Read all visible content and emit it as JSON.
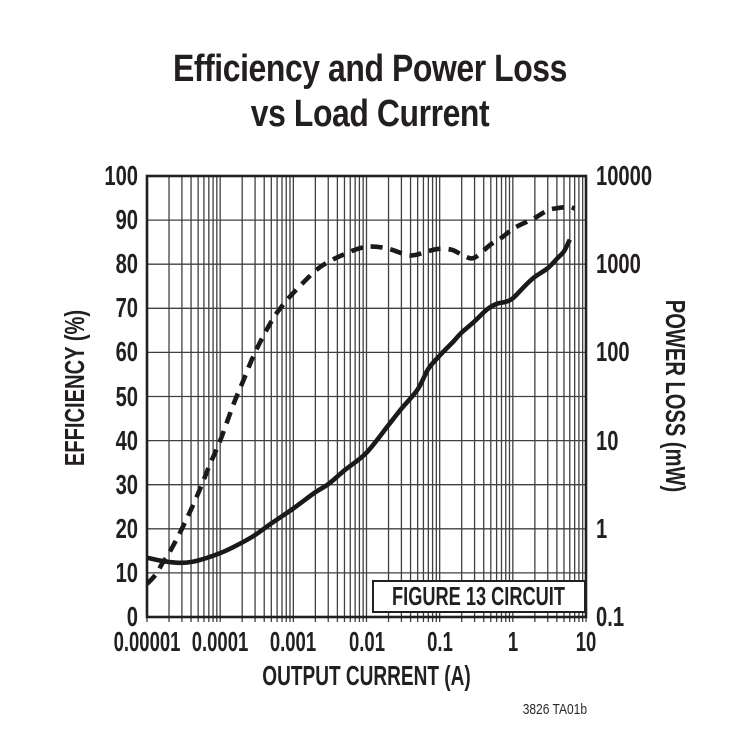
{
  "title": {
    "line1": "Efficiency and Power Loss",
    "line2": "vs Load Current"
  },
  "footnote": "3826 TA01b",
  "annotation": "FIGURE 13 CIRCUIT",
  "colors": {
    "ink": "#231f20",
    "grid": "#404040",
    "curve": "#1a1a1a",
    "background": "#ffffff"
  },
  "chart_data": {
    "type": "line",
    "title": "Efficiency and Power Loss vs Load Current",
    "x_axis": {
      "label": "OUTPUT CURRENT (A)",
      "scale": "log",
      "range": [
        1e-05,
        10
      ],
      "ticks": [
        "0.00001",
        "0.0001",
        "0.001",
        "0.01",
        "0.1",
        "1",
        "10"
      ]
    },
    "left_axis": {
      "label": "EFFICIENCY (%)",
      "scale": "linear",
      "range": [
        0,
        100
      ],
      "ticks": [
        "100",
        "90",
        "80",
        "70",
        "60",
        "50",
        "40",
        "30",
        "20",
        "10",
        "0"
      ]
    },
    "right_axis": {
      "label": "POWER LOSS (mW)",
      "scale": "log",
      "range": [
        0.1,
        10000
      ],
      "ticks": [
        "10000",
        "1000",
        "100",
        "10",
        "1",
        "0.1"
      ]
    },
    "grid": {
      "vertical": "log decades with minor lines",
      "horizontal": "every 10%"
    },
    "annotation": "FIGURE 13 CIRCUIT",
    "series": [
      {
        "name": "Efficiency",
        "axis": "left",
        "unit": "%",
        "line_style": "dashed",
        "points": [
          [
            1e-05,
            7.5
          ],
          [
            1.3e-05,
            9.5
          ],
          [
            1.6e-05,
            12
          ],
          [
            2e-05,
            14.5
          ],
          [
            3e-05,
            20
          ],
          [
            5e-05,
            28
          ],
          [
            7e-05,
            34
          ],
          [
            0.0001,
            40
          ],
          [
            0.00015,
            48
          ],
          [
            0.0002,
            53
          ],
          [
            0.0003,
            60
          ],
          [
            0.0005,
            67
          ],
          [
            0.0007,
            70.5
          ],
          [
            0.001,
            73.5
          ],
          [
            0.002,
            78.5
          ],
          [
            0.003,
            80.5
          ],
          [
            0.005,
            82.3
          ],
          [
            0.008,
            83.6
          ],
          [
            0.012,
            84
          ],
          [
            0.02,
            83.5
          ],
          [
            0.04,
            82
          ],
          [
            0.07,
            83
          ],
          [
            0.1,
            83.5
          ],
          [
            0.15,
            83.2
          ],
          [
            0.22,
            81.8
          ],
          [
            0.3,
            81.5
          ],
          [
            0.5,
            84.5
          ],
          [
            0.7,
            86
          ],
          [
            1,
            88
          ],
          [
            1.5,
            89.5
          ],
          [
            2,
            90.5
          ],
          [
            3,
            92.2
          ],
          [
            4,
            92.7
          ],
          [
            5,
            92.9
          ],
          [
            6,
            93
          ],
          [
            7,
            92.6
          ]
        ]
      },
      {
        "name": "Power Loss",
        "axis": "right",
        "unit": "mW",
        "line_style": "solid",
        "points": [
          [
            1e-05,
            0.47
          ],
          [
            2e-05,
            0.42
          ],
          [
            4e-05,
            0.42
          ],
          [
            0.0001,
            0.53
          ],
          [
            0.0002,
            0.7
          ],
          [
            0.0003,
            0.85
          ],
          [
            0.0005,
            1.15
          ],
          [
            0.001,
            1.7
          ],
          [
            0.002,
            2.6
          ],
          [
            0.003,
            3.2
          ],
          [
            0.005,
            4.6
          ],
          [
            0.01,
            7.3
          ],
          [
            0.02,
            15
          ],
          [
            0.03,
            23
          ],
          [
            0.05,
            38
          ],
          [
            0.07,
            65
          ],
          [
            0.1,
            92
          ],
          [
            0.15,
            130
          ],
          [
            0.2,
            168
          ],
          [
            0.3,
            225
          ],
          [
            0.45,
            310
          ],
          [
            0.6,
            355
          ],
          [
            0.8,
            375
          ],
          [
            1,
            410
          ],
          [
            1.5,
            580
          ],
          [
            2,
            720
          ],
          [
            3,
            900
          ],
          [
            4,
            1150
          ],
          [
            5,
            1400
          ],
          [
            6,
            1900
          ]
        ]
      }
    ]
  }
}
